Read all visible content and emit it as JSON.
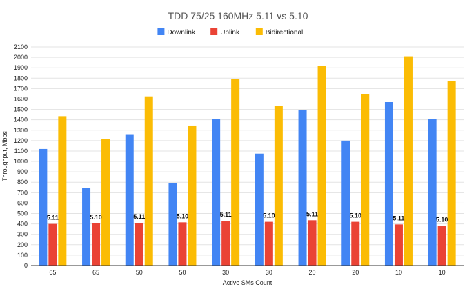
{
  "chart_data": {
    "type": "bar",
    "title": "TDD 75/25 160MHz 5.11 vs 5.10",
    "xlabel": "Active SMs Count",
    "ylabel": "Throughput, Mbps",
    "ylim": [
      0,
      2100
    ],
    "ytick_step": 100,
    "grid": true,
    "legend_position": "top",
    "categories": [
      "65",
      "65",
      "50",
      "50",
      "30",
      "30",
      "20",
      "20",
      "10",
      "10"
    ],
    "series": [
      {
        "name": "Downlink",
        "color": "#4285f4",
        "values": [
          1120,
          745,
          1255,
          795,
          1405,
          1075,
          1495,
          1200,
          1570,
          1405
        ]
      },
      {
        "name": "Uplink",
        "color": "#ea4335",
        "values": [
          400,
          405,
          410,
          415,
          430,
          420,
          435,
          420,
          395,
          380
        ]
      },
      {
        "name": "Bidirectional",
        "color": "#fbbc04",
        "values": [
          1435,
          1215,
          1625,
          1345,
          1795,
          1535,
          1920,
          1645,
          2010,
          1775
        ]
      }
    ],
    "annotations": {
      "series": "Uplink",
      "labels": [
        "5.11",
        "5.10",
        "5.11",
        "5.10",
        "5.11",
        "5.10",
        "5.11",
        "5.10",
        "5.11",
        "5.10"
      ]
    }
  }
}
